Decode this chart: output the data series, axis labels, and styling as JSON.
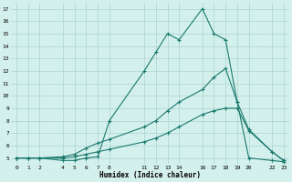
{
  "xlabel": "Humidex (Indice chaleur)",
  "bg_color": "#d4f0ec",
  "grid_color": "#aad4ce",
  "line_color": "#1a7a6e",
  "x_ticks": [
    0,
    1,
    2,
    4,
    5,
    6,
    7,
    8,
    11,
    12,
    13,
    14,
    16,
    17,
    18,
    19,
    20,
    22,
    23
  ],
  "x_tick_labels": [
    "0",
    "1",
    "2",
    "4",
    "5",
    "6",
    "7",
    "8",
    "11",
    "12",
    "13",
    "14",
    "16",
    "17",
    "18",
    "19",
    "20",
    "22",
    "23"
  ],
  "ylim": [
    4.5,
    17.5
  ],
  "xlim": [
    -0.5,
    23.5
  ],
  "y_ticks": [
    5,
    6,
    7,
    8,
    9,
    10,
    11,
    12,
    13,
    14,
    15,
    16,
    17
  ],
  "line1_x": [
    0,
    1,
    2,
    4,
    5,
    6,
    7,
    8,
    11,
    12,
    13,
    14,
    16,
    17,
    18,
    19,
    20,
    22,
    23
  ],
  "line1_y": [
    5.0,
    5.0,
    5.0,
    4.8,
    4.8,
    5.0,
    5.1,
    8.0,
    12.0,
    13.5,
    15.0,
    14.5,
    17.0,
    15.0,
    14.5,
    9.5,
    5.0,
    4.8,
    4.7
  ],
  "line2_x": [
    0,
    1,
    2,
    4,
    5,
    6,
    7,
    8,
    11,
    12,
    13,
    14,
    16,
    17,
    18,
    19,
    20,
    22,
    23
  ],
  "line2_y": [
    5.0,
    5.0,
    5.0,
    5.1,
    5.3,
    5.8,
    6.2,
    6.5,
    7.5,
    8.0,
    8.8,
    9.5,
    10.5,
    11.5,
    12.2,
    9.5,
    7.3,
    5.5,
    4.8
  ],
  "line3_x": [
    0,
    1,
    2,
    4,
    5,
    6,
    7,
    8,
    11,
    12,
    13,
    14,
    16,
    17,
    18,
    19,
    20,
    22,
    23
  ],
  "line3_y": [
    5.0,
    5.0,
    5.0,
    5.0,
    5.1,
    5.3,
    5.5,
    5.7,
    6.3,
    6.6,
    7.0,
    7.5,
    8.5,
    8.8,
    9.0,
    9.0,
    7.2,
    5.5,
    4.8
  ],
  "figwidth": 3.2,
  "figheight": 2.0,
  "dpi": 100
}
